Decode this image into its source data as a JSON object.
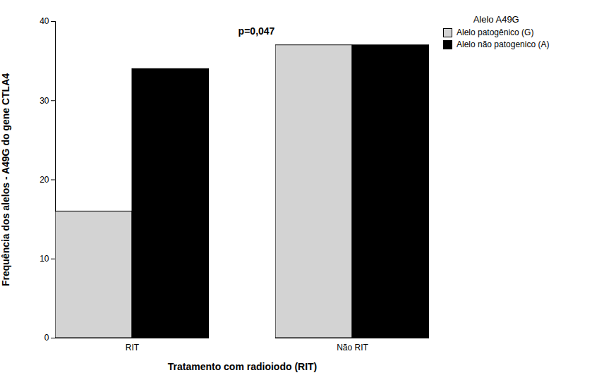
{
  "chart_data": {
    "type": "bar",
    "categories": [
      "RIT",
      "Não RIT"
    ],
    "series": [
      {
        "name": "Alelo patogênico (G)",
        "color": "#d3d3d3",
        "values": [
          16,
          37
        ]
      },
      {
        "name": "Alelo não patogenico (A)",
        "color": "#000000",
        "values": [
          34,
          37
        ]
      }
    ],
    "x_label": "Tratamento com radioiodo (RIT)",
    "y_label": "Frequência dos alelos - A49G do gene CTLA4",
    "legend_title": "Alelo A49G",
    "annotations": [
      "p=0,047"
    ],
    "ylim": [
      0,
      40
    ],
    "yticks": [
      0,
      10,
      20,
      30,
      40
    ],
    "grid": false,
    "legend": "upper right"
  }
}
